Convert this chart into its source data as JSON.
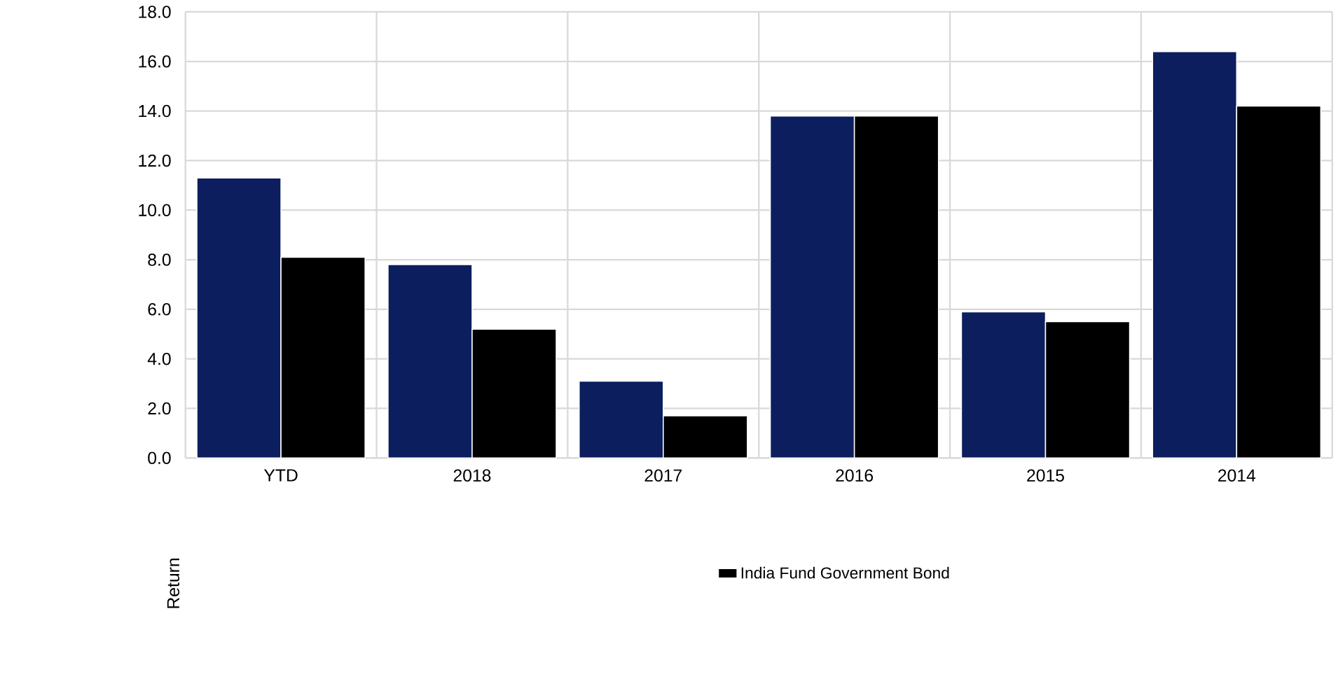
{
  "chart_data": {
    "type": "bar",
    "ylabel": "Return",
    "categories": [
      "YTD",
      "2018",
      "2017",
      "2016",
      "2015",
      "2014"
    ],
    "series": [
      {
        "color": "#0c1e5e",
        "values": [
          11.3,
          7.8,
          3.1,
          13.8,
          5.9,
          16.4
        ]
      },
      {
        "name": "India Fund Government Bond",
        "color": "#000000",
        "values": [
          8.1,
          5.2,
          1.7,
          13.8,
          5.5,
          14.2
        ]
      }
    ],
    "ylim": [
      0,
      18
    ],
    "yticks": [
      {
        "value": 0,
        "label": "0.0"
      },
      {
        "value": 2,
        "label": "2.0"
      },
      {
        "value": 4,
        "label": "4.0"
      },
      {
        "value": 6,
        "label": "6.0"
      },
      {
        "value": 8,
        "label": "8.0"
      },
      {
        "value": 10,
        "label": "10.0"
      },
      {
        "value": 12,
        "label": "12.0"
      },
      {
        "value": 14,
        "label": "14.0"
      },
      {
        "value": 16,
        "label": "16.0"
      },
      {
        "value": 18,
        "label": "18.0"
      }
    ],
    "grid": true,
    "legend": "bottom"
  }
}
